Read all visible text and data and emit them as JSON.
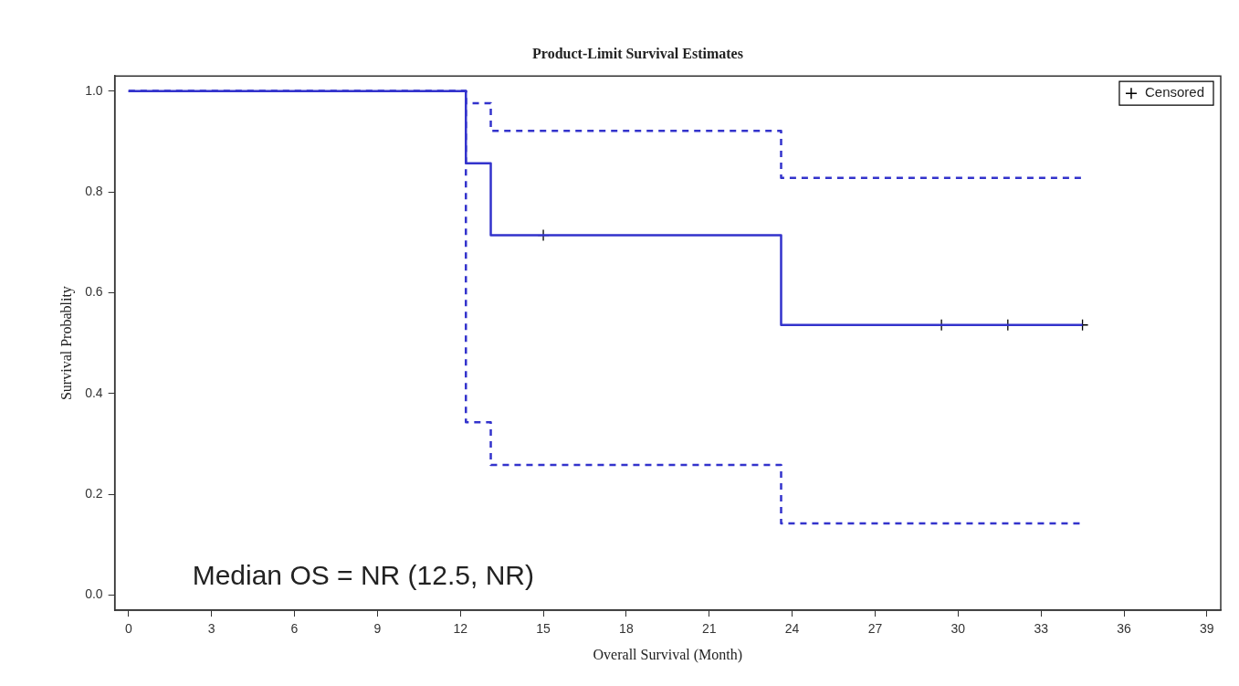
{
  "chart_data": {
    "type": "step",
    "title": "Product-Limit Survival Estimates",
    "xlabel": "Overall Survival (Month)",
    "ylabel": "Survival Probablity",
    "series": [
      {
        "color": "#3333cc",
        "line_style": "solid",
        "x": [
          0,
          12.2,
          13.1,
          23.6,
          34.5
        ],
        "values": [
          1,
          0.857,
          0.714,
          0.536,
          0.536
        ]
      },
      {
        "color": "#3333cc",
        "line_style": "dashed",
        "x": [
          0,
          12.2,
          13.1,
          23.6,
          34.5
        ],
        "values": [
          1,
          0.976,
          0.921,
          0.828,
          0.828
        ]
      },
      {
        "color": "#3333cc",
        "line_style": "dashed",
        "x": [
          0,
          12.2,
          13.1,
          23.6,
          34.5
        ],
        "values": [
          1,
          0.343,
          0.258,
          0.142,
          0.142
        ]
      },
      {
        "type": "scatter",
        "name": "Censored",
        "color": "#000000",
        "marker": "cross",
        "x": [
          15.0,
          29.4,
          31.8,
          34.5
        ],
        "values": [
          0.714,
          0.536,
          0.536,
          0.536
        ]
      }
    ],
    "xlim": [
      -0.5,
      39.5
    ],
    "xticks": [
      0,
      3,
      6,
      9,
      12,
      15,
      18,
      21,
      24,
      27,
      30,
      33,
      36,
      39
    ],
    "ylim": [
      -0.03,
      1.03
    ],
    "yticks": [
      {
        "value": 0,
        "label": "0.0"
      },
      0.2,
      0.4,
      0.6,
      0.8,
      {
        "value": 1,
        "label": "1.0"
      }
    ],
    "legend": "top right",
    "grid": false,
    "annotations": [
      "Median OS = NR (12.5, NR)"
    ]
  }
}
